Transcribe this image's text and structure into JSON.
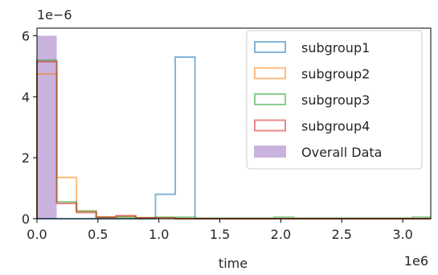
{
  "chart_data": {
    "type": "histogram",
    "title": "",
    "xlabel": "time",
    "ylabel": "",
    "x_offset_label": "1e6",
    "y_offset_label": "1e−6",
    "xlim": [
      0,
      3.23
    ],
    "ylim": [
      0,
      6.25
    ],
    "x_ticks": [
      0.0,
      0.5,
      1.0,
      1.5,
      2.0,
      2.5,
      3.0
    ],
    "x_tick_labels": [
      "0.0",
      "0.5",
      "1.0",
      "1.5",
      "2.0",
      "2.5",
      "3.0"
    ],
    "y_ticks": [
      0,
      2,
      4,
      6
    ],
    "y_tick_labels": [
      "0",
      "2",
      "4",
      "6"
    ],
    "bin_edges": [
      0,
      0.162,
      0.324,
      0.486,
      0.648,
      0.81,
      0.972,
      1.134,
      1.296,
      1.458,
      1.62,
      1.782,
      1.944,
      2.106,
      2.268,
      2.43,
      2.592,
      2.754,
      2.916,
      3.078,
      3.24
    ],
    "legend_position": "upper-right",
    "series": [
      {
        "name": "subgroup1",
        "style": "step",
        "color": "#1f77b4",
        "values": [
          0,
          0,
          0,
          0,
          0,
          0,
          0.8,
          5.3,
          0,
          0,
          0,
          0,
          0,
          0,
          0,
          0,
          0,
          0,
          0,
          0
        ]
      },
      {
        "name": "subgroup2",
        "style": "step",
        "color": "#ff7f0e",
        "values": [
          4.75,
          1.35,
          0.25,
          0.05,
          0.08,
          0.03,
          0.03,
          0,
          0,
          0,
          0,
          0,
          0,
          0,
          0,
          0,
          0,
          0,
          0,
          0
        ]
      },
      {
        "name": "subgroup3",
        "style": "step",
        "color": "#2ca02c",
        "values": [
          5.2,
          0.55,
          0.25,
          0.05,
          0.05,
          0.03,
          0.05,
          0.05,
          0.02,
          0.02,
          0.02,
          0.02,
          0.05,
          0.02,
          0.02,
          0.02,
          0.02,
          0.02,
          0.02,
          0.05
        ]
      },
      {
        "name": "subgroup4",
        "style": "step",
        "color": "#d62728",
        "values": [
          5.15,
          0.5,
          0.2,
          0.05,
          0.1,
          0.03,
          0.02,
          0,
          0,
          0,
          0,
          0,
          0,
          0,
          0,
          0,
          0,
          0,
          0,
          0
        ]
      },
      {
        "name": "Overall Data",
        "style": "filled",
        "color": "#9467bd",
        "values": [
          6.0,
          0,
          0,
          0,
          0,
          0,
          0,
          0,
          0,
          0,
          0,
          0,
          0,
          0,
          0,
          0,
          0,
          0,
          0,
          0
        ]
      }
    ]
  }
}
